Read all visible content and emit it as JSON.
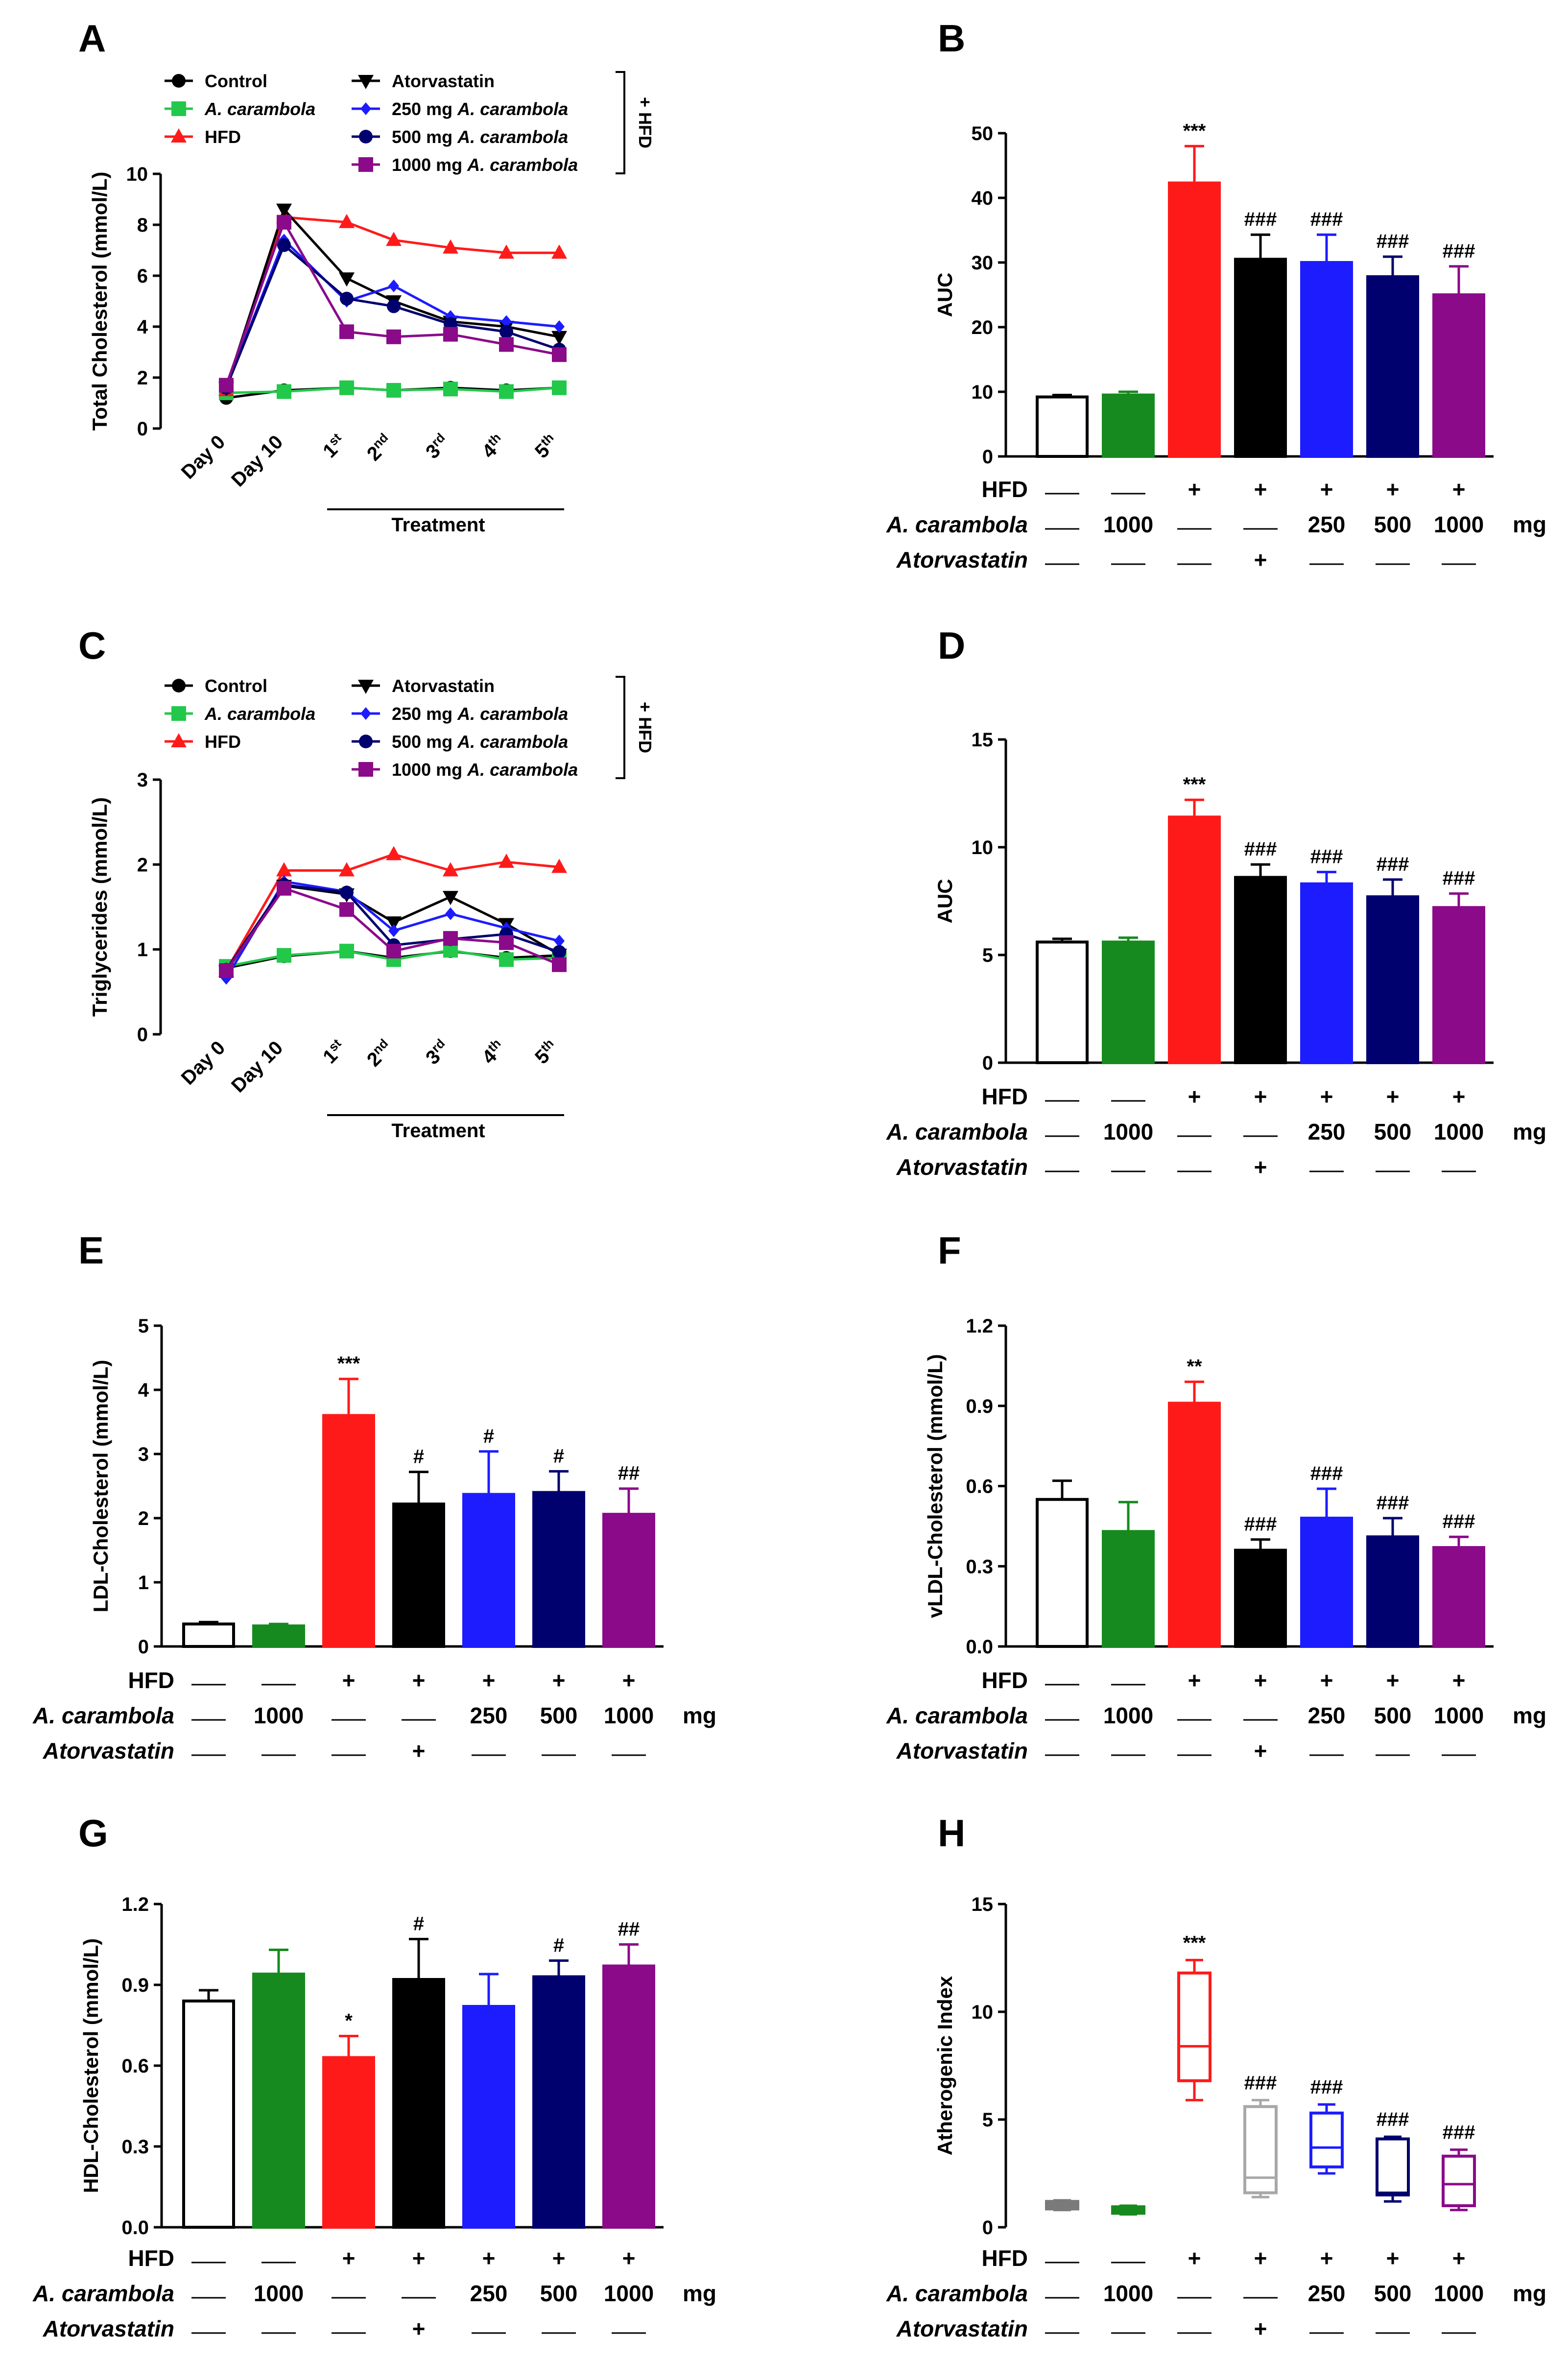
{
  "figure": {
    "groups": [
      "Control",
      "A. carambola 1000",
      "HFD",
      "Atorvastatin",
      "250 mg A. carambola",
      "500 mg A. carambola",
      "1000 mg A. carambola"
    ],
    "colors": {
      "control": "#000000",
      "carambola": "#22c84a",
      "carambola_bar": "#168a1e",
      "hfd": "#ff1a1a",
      "atorvastatin": "#000000",
      "c250": "#1c1cff",
      "c500": "#00006e",
      "c1000": "#8a0a8a",
      "atorva_box": "#a8a8a8",
      "control_box": "#7a7a7a"
    },
    "conditions": {
      "rows": [
        {
          "label": "HFD",
          "italic": false,
          "values": [
            "—",
            "—",
            "+",
            "+",
            "+",
            "+",
            "+"
          ]
        },
        {
          "label": "A. carambola",
          "italic": true,
          "values": [
            "—",
            "1000",
            "—",
            "—",
            "250",
            "500",
            "1000"
          ]
        },
        {
          "label": "Atorvastatin",
          "italic": true,
          "values": [
            "—",
            "—",
            "—",
            "+",
            "—",
            "—",
            "—"
          ]
        }
      ],
      "unit": "mg"
    },
    "legend": {
      "left": [
        "Control",
        "A. carambola",
        "HFD"
      ],
      "right": [
        {
          "text": "Atorvastatin"
        },
        {
          "prefix": "250 mg ",
          "italic": "A. carambola"
        },
        {
          "prefix": "500 mg ",
          "italic": "A. carambola"
        },
        {
          "prefix": "1000 mg ",
          "italic": "A. carambola"
        }
      ],
      "hfd_bracket": "+ HFD"
    },
    "time_labels": [
      "Day 0",
      "Day 10",
      "1",
      "2",
      "3",
      "4",
      "5"
    ],
    "time_sups": [
      "",
      "",
      "st",
      "nd",
      "rd",
      "th",
      "th"
    ],
    "treatment_label": "Treatment"
  },
  "chart_data": [
    {
      "panel": "A",
      "type": "line",
      "ylabel": "Total Cholesterol (mmol/L)",
      "ylim": [
        0,
        10
      ],
      "yticks": [
        0,
        2,
        4,
        6,
        8,
        10
      ],
      "series": [
        {
          "name": "Control",
          "marker": "circle",
          "color": "#000000",
          "values": [
            1.2,
            1.5,
            1.6,
            1.5,
            1.6,
            1.5,
            1.6
          ]
        },
        {
          "name": "A. carambola",
          "marker": "square",
          "color": "#22c84a",
          "values": [
            1.4,
            1.45,
            1.6,
            1.5,
            1.55,
            1.45,
            1.6
          ]
        },
        {
          "name": "HFD",
          "marker": "triangle",
          "color": "#ff1a1a",
          "values": [
            1.5,
            8.3,
            8.1,
            7.4,
            7.1,
            6.9,
            6.9
          ]
        },
        {
          "name": "Atorvastatin",
          "marker": "triangle-down",
          "color": "#000000",
          "values": [
            1.6,
            8.6,
            5.9,
            5.0,
            4.2,
            4.0,
            3.6
          ]
        },
        {
          "name": "250 mg A. carambola",
          "marker": "diamond",
          "color": "#1c1cff",
          "values": [
            1.6,
            7.4,
            5.0,
            5.6,
            4.4,
            4.2,
            4.0
          ]
        },
        {
          "name": "500 mg A. carambola",
          "marker": "circle",
          "color": "#00006e",
          "values": [
            1.6,
            7.2,
            5.1,
            4.8,
            4.1,
            3.8,
            3.1
          ]
        },
        {
          "name": "1000 mg A. carambola",
          "marker": "square",
          "color": "#8a0a8a",
          "values": [
            1.7,
            8.1,
            3.8,
            3.6,
            3.7,
            3.3,
            2.9
          ]
        }
      ]
    },
    {
      "panel": "B",
      "type": "bar",
      "ylabel": "AUC",
      "ylim": [
        0,
        50
      ],
      "yticks": [
        0,
        10,
        20,
        30,
        40,
        50
      ],
      "values": [
        9.2,
        9.5,
        42.3,
        30.5,
        30.0,
        27.8,
        25.0
      ],
      "errors": [
        0.3,
        0.5,
        5.7,
        3.8,
        4.3,
        3.1,
        4.4
      ],
      "labels": [
        "",
        "",
        "***",
        "###",
        "###",
        "###",
        "###"
      ]
    },
    {
      "panel": "C",
      "type": "line",
      "ylabel": "Triglycerides (mmol/L)",
      "ylim": [
        0,
        3
      ],
      "yticks": [
        0,
        1,
        2,
        3
      ],
      "series": [
        {
          "name": "Control",
          "marker": "circle",
          "color": "#000000",
          "values": [
            0.78,
            0.92,
            0.98,
            0.9,
            0.98,
            0.9,
            0.93
          ]
        },
        {
          "name": "A. carambola",
          "marker": "square",
          "color": "#22c84a",
          "values": [
            0.8,
            0.93,
            0.98,
            0.88,
            0.99,
            0.88,
            0.9
          ]
        },
        {
          "name": "HFD",
          "marker": "triangle",
          "color": "#ff1a1a",
          "values": [
            0.75,
            1.93,
            1.93,
            2.12,
            1.93,
            2.03,
            1.97
          ]
        },
        {
          "name": "Atorvastatin",
          "marker": "triangle-down",
          "color": "#000000",
          "values": [
            0.74,
            1.75,
            1.65,
            1.32,
            1.62,
            1.3,
            0.94
          ]
        },
        {
          "name": "250 mg A. carambola",
          "marker": "diamond",
          "color": "#1c1cff",
          "values": [
            0.66,
            1.8,
            1.68,
            1.22,
            1.42,
            1.25,
            1.1
          ]
        },
        {
          "name": "500 mg A. carambola",
          "marker": "circle",
          "color": "#00006e",
          "values": [
            0.76,
            1.76,
            1.67,
            1.05,
            1.12,
            1.18,
            0.97
          ]
        },
        {
          "name": "1000 mg A. carambola",
          "marker": "square",
          "color": "#8a0a8a",
          "values": [
            0.75,
            1.72,
            1.47,
            0.98,
            1.13,
            1.08,
            0.82
          ]
        }
      ]
    },
    {
      "panel": "D",
      "type": "bar",
      "ylabel": "AUC",
      "ylim": [
        0,
        15
      ],
      "yticks": [
        0,
        5,
        10,
        15
      ],
      "values": [
        5.6,
        5.6,
        11.4,
        8.6,
        8.3,
        7.7,
        7.2
      ],
      "errors": [
        0.15,
        0.2,
        0.8,
        0.6,
        0.55,
        0.8,
        0.65
      ],
      "labels": [
        "",
        "",
        "***",
        "###",
        "###",
        "###",
        "###"
      ]
    },
    {
      "panel": "E",
      "type": "bar",
      "ylabel": "LDL-Cholesterol (mmol/L)",
      "ylim": [
        0,
        5
      ],
      "yticks": [
        0,
        1,
        2,
        3,
        4,
        5
      ],
      "values": [
        0.35,
        0.32,
        3.6,
        2.22,
        2.37,
        2.4,
        2.06
      ],
      "errors": [
        0.03,
        0.03,
        0.57,
        0.5,
        0.67,
        0.33,
        0.4
      ],
      "labels": [
        "",
        "",
        "***",
        "#",
        "#",
        "#",
        "##"
      ]
    },
    {
      "panel": "F",
      "type": "bar",
      "ylabel": "vLDL-Cholesterol (mmol/L)",
      "ylim": [
        0,
        1.2
      ],
      "yticks": [
        0.0,
        0.3,
        0.6,
        0.9,
        1.2
      ],
      "values": [
        0.55,
        0.43,
        0.91,
        0.36,
        0.48,
        0.41,
        0.37
      ],
      "errors": [
        0.07,
        0.11,
        0.08,
        0.04,
        0.11,
        0.07,
        0.04
      ],
      "labels": [
        "",
        "",
        "**",
        "###",
        "###",
        "###",
        "###"
      ]
    },
    {
      "panel": "G",
      "type": "bar",
      "ylabel": "HDL-Cholesterol (mmol/L)",
      "ylim": [
        0,
        1.2
      ],
      "yticks": [
        0.0,
        0.3,
        0.6,
        0.9,
        1.2
      ],
      "values": [
        0.84,
        0.94,
        0.63,
        0.92,
        0.82,
        0.93,
        0.97
      ],
      "errors": [
        0.04,
        0.09,
        0.08,
        0.15,
        0.12,
        0.06,
        0.08
      ],
      "labels": [
        "",
        "",
        "*",
        "#",
        "",
        "#",
        "##"
      ]
    },
    {
      "panel": "H",
      "type": "box",
      "ylabel": "Atherogenic Index",
      "ylim": [
        0,
        15
      ],
      "yticks": [
        0,
        5,
        10,
        15
      ],
      "boxes": [
        {
          "min": 0.8,
          "q1": 0.85,
          "median": 1.05,
          "q3": 1.2,
          "max": 1.25
        },
        {
          "min": 0.6,
          "q1": 0.65,
          "median": 0.8,
          "q3": 0.95,
          "max": 1.0
        },
        {
          "min": 5.9,
          "q1": 6.8,
          "median": 8.4,
          "q3": 11.8,
          "max": 12.4
        },
        {
          "min": 1.4,
          "q1": 1.6,
          "median": 2.3,
          "q3": 5.6,
          "max": 5.9
        },
        {
          "min": 2.5,
          "q1": 2.8,
          "median": 3.7,
          "q3": 5.3,
          "max": 5.7
        },
        {
          "min": 1.2,
          "q1": 1.5,
          "median": 1.6,
          "q3": 4.1,
          "max": 4.2
        },
        {
          "min": 0.8,
          "q1": 1.0,
          "median": 2.0,
          "q3": 3.3,
          "max": 3.6
        }
      ],
      "labels": [
        "",
        "",
        "***",
        "###",
        "###",
        "###",
        "###"
      ]
    }
  ],
  "panels": [
    "A",
    "B",
    "C",
    "D",
    "E",
    "F",
    "G",
    "H"
  ]
}
